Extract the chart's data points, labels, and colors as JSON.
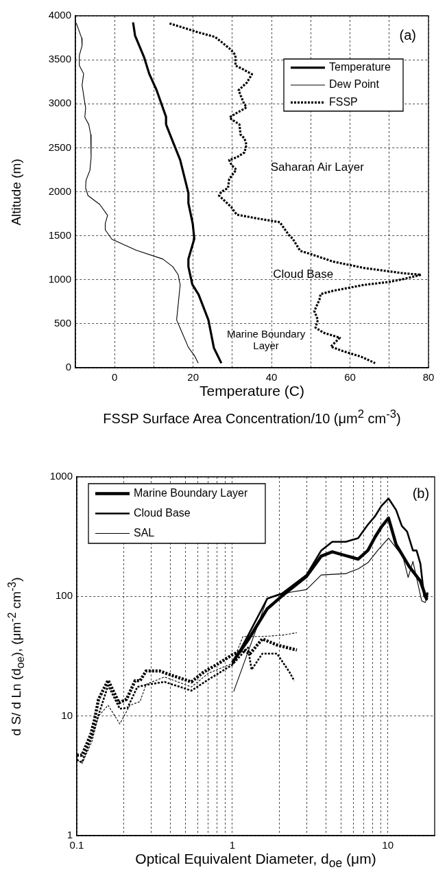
{
  "chart_data": [
    {
      "type": "line",
      "xlabel": "Temperature (C)\nFSSP Surface Area Concentration/10 (μm$^{2}$ cm$^{-3}$)",
      "ylabel": "Altitude (m)",
      "xlim": [
        -10,
        80
      ],
      "xticks": [
        {
          "value": -10,
          "label": null
        },
        0,
        {
          "value": 10,
          "label": null
        },
        20,
        {
          "value": 30,
          "label": null
        },
        40,
        {
          "value": 50,
          "label": null
        },
        60,
        {
          "value": 70,
          "label": null
        },
        80
      ],
      "ylim": [
        0,
        4000
      ],
      "yticks": [
        0,
        500,
        1000,
        1500,
        2000,
        2500,
        3000,
        3500,
        4000
      ],
      "grid": true,
      "legend": "top right",
      "series": [
        {
          "name": "Temperature",
          "color": "#000000",
          "line_style": "solid",
          "x": [
            4.7,
            5.2,
            7.5,
            8.8,
            10.7,
            13.1,
            13.1,
            14.9,
            16.7,
            18.8,
            18.8,
            19.9,
            20.3,
            18.8,
            18.8,
            19.8,
            21.4,
            23.9,
            25.3,
            27.2
          ],
          "values": [
            3925,
            3775,
            3530,
            3342,
            3154,
            2851,
            2765,
            2563,
            2361,
            1986,
            1870,
            1639,
            1466,
            1235,
            1149,
            946,
            831,
            543,
            225,
            52
          ]
        },
        {
          "name": "Dew Point",
          "color": "#000000",
          "line_style": "solid",
          "x": [
            -9.8,
            -8.4,
            -8.3,
            -9.0,
            -9.0,
            -7.9,
            -8.3,
            -7.4,
            -7.6,
            -6.6,
            -6.1,
            -6.0,
            -6.3,
            -7.3,
            -7.4,
            -6.8,
            -3.8,
            -1.8,
            -2.4,
            -2.4,
            -0.7,
            5.5,
            12.3,
            14.8,
            16.2,
            16.7,
            15.8,
            17.2,
            18.8,
            20.4,
            21.3
          ],
          "values": [
            3919,
            3746,
            3660,
            3550,
            3434,
            3342,
            3212,
            2952,
            2846,
            2765,
            2649,
            2390,
            2245,
            2130,
            2043,
            1957,
            1856,
            1732,
            1639,
            1567,
            1460,
            1336,
            1235,
            1149,
            1056,
            941,
            543,
            398,
            231,
            133,
            52
          ]
        },
        {
          "name": "FSSP",
          "color": "#000000",
          "line_style": "dotted",
          "x": [
            14.0,
            18.8,
            21.4,
            25.6,
            27.2,
            29.2,
            30.2,
            30.8,
            30.8,
            32.4,
            35.0,
            33.7,
            31.6,
            32.1,
            32.9,
            33.6,
            31.1,
            29.3,
            29.8,
            31.8,
            32.1,
            33.1,
            33.6,
            33.1,
            31.1,
            29.2,
            29.8,
            31.0,
            29.2,
            28.9,
            27.2,
            26.6,
            29.7,
            31.1,
            36.3,
            42.1,
            42.8,
            44.4,
            45.4,
            47.3,
            49.9,
            55.7,
            63.5,
            73.2,
            78.1,
            73.2,
            70.0,
            63.5,
            55.7,
            52.5,
            52.2,
            50.9,
            51.8,
            51.2,
            53.2,
            57.4,
            55.1,
            57.7,
            62.9,
            66.4
          ],
          "values": [
            3913,
            3847,
            3810,
            3760,
            3703,
            3631,
            3587,
            3550,
            3434,
            3400,
            3336,
            3241,
            3154,
            3097,
            3010,
            2958,
            2895,
            2846,
            2823,
            2765,
            2649,
            2606,
            2534,
            2447,
            2390,
            2361,
            2303,
            2251,
            2144,
            2043,
            2000,
            1957,
            1827,
            1740,
            1697,
            1654,
            1610,
            1509,
            1466,
            1328,
            1293,
            1206,
            1134,
            1076,
            1056,
            1004,
            975,
            941,
            874,
            837,
            773,
            644,
            543,
            456,
            398,
            341,
            240,
            196,
            124,
            52
          ]
        }
      ],
      "annotations": [
        "(a)",
        "Saharan Air Layer",
        "Cloud Base",
        "Marine Boundary\nLayer"
      ]
    },
    {
      "type": "line",
      "xlabel": "Optical Equivalent Diameter, d$_{oe}$ (μm)",
      "ylabel": "d S/ d Ln (d$_{oe}$), (μm$^{-2}$ cm$^{-3}$)",
      "log": "xy",
      "xlim": [
        0.1,
        20
      ],
      "xticks": [
        0.1,
        {
          "value": 0.2,
          "label": null
        },
        {
          "value": 0.3,
          "label": null
        },
        {
          "value": 0.4,
          "label": null
        },
        {
          "value": 0.5,
          "label": null
        },
        {
          "value": 0.6,
          "label": null
        },
        {
          "value": 0.7,
          "label": null
        },
        {
          "value": 0.8,
          "label": null
        },
        {
          "value": 0.9,
          "label": null
        },
        1,
        {
          "value": 2,
          "label": null
        },
        {
          "value": 3,
          "label": null
        },
        {
          "value": 4,
          "label": null
        },
        {
          "value": 5,
          "label": null
        },
        {
          "value": 6,
          "label": null
        },
        {
          "value": 7,
          "label": null
        },
        {
          "value": 8,
          "label": null
        },
        {
          "value": 9,
          "label": null
        },
        10
      ],
      "ylim": [
        1,
        1000
      ],
      "yticks": [
        1,
        10,
        100,
        1000
      ],
      "grid": true,
      "legend": "top left",
      "series": [
        {
          "name": "Marine Boundary Layer",
          "color": "#000000",
          "line_style": "solid",
          "x": [
            1,
            1.26,
            1.68,
            2.09,
            3.0,
            3.73,
            4.39,
            6.44,
            7.44,
            8.28,
            9.06,
            10.1,
            11.3,
            13.7,
            16.2,
            17.8
          ],
          "values": [
            28,
            43,
            79,
            101,
            147,
            217,
            236,
            205,
            242,
            314,
            379,
            452,
            272,
            178,
            134,
            94
          ]
        },
        {
          "name": "Cloud Base",
          "color": "#000000",
          "line_style": "solid",
          "x": [
            1,
            1.26,
            1.68,
            2.09,
            3.0,
            3.73,
            4.39,
            5.36,
            6.44,
            7.44,
            8.28,
            9.06,
            10.1,
            11.3,
            12.3,
            13.3,
            14.5,
            15.3,
            16.2,
            17.1,
            17.8,
            18.0
          ],
          "values": [
            27,
            47,
            96,
            106,
            151,
            242,
            286,
            286,
            307,
            398,
            469,
            567,
            659,
            528,
            388,
            348,
            242,
            242,
            187,
            101,
            94,
            108
          ]
        },
        {
          "name": "SAL",
          "color": "#000000",
          "line_style": "solid",
          "x": [
            1.02,
            1.68,
            2.33,
            3.0,
            3.73,
            5.36,
            6.44,
            7.44,
            8.6,
            10.1,
            12.5,
            13.5,
            14.5,
            16.5,
            17.4,
            18.0
          ],
          "values": [
            16,
            96,
            108,
            114,
            151,
            155,
            170,
            191,
            242,
            307,
            215,
            144,
            196,
            92,
            89,
            101
          ]
        },
        {
          "color": "#000000",
          "line_style": "dotted",
          "x": [
            0.1,
            0.108,
            0.123,
            0.13,
            0.138,
            0.159,
            0.187,
            0.209,
            0.237,
            0.255,
            0.279,
            0.341,
            0.416,
            0.546,
            0.654,
            0.813,
            1.0,
            1.17,
            1.3,
            1.56,
            1.94,
            2.6
          ],
          "values": [
            4.7,
            4.7,
            7.0,
            9.3,
            13.8,
            19.9,
            12.9,
            13.8,
            19.7,
            19.7,
            23.8,
            23.8,
            21.7,
            19.3,
            23.3,
            27.4,
            32.5,
            35.6,
            33.2,
            44.1,
            39.2,
            35.6
          ]
        },
        {
          "color": "#000000",
          "line_style": "dotted",
          "x": [
            0.1,
            0.108,
            0.125,
            0.138,
            0.159,
            0.189,
            0.212,
            0.245,
            0.274,
            0.366,
            0.546,
            0.703,
            1.0,
            1.26,
            1.33,
            1.56,
            1.94,
            2.33,
            2.5
          ],
          "values": [
            4.3,
            4.1,
            6.7,
            10.2,
            18,
            11.5,
            11.7,
            17.5,
            18.1,
            19.3,
            16.3,
            20.2,
            26.8,
            37.4,
            24.4,
            33.2,
            33.2,
            23.3,
            19.7
          ]
        },
        {
          "color": "#000000",
          "line_style": "dotted",
          "x": [
            0.1,
            0.108,
            0.125,
            0.138,
            0.159,
            0.189,
            0.22,
            0.255,
            0.279,
            0.366,
            0.546,
            0.703,
            1.0,
            1.17,
            1.56,
            2.09,
            2.6
          ],
          "values": [
            4.4,
            4.0,
            6.1,
            10,
            12.3,
            8.6,
            12.3,
            13.2,
            18.4,
            21.2,
            17.5,
            22.8,
            27.5,
            46.2,
            46.2,
            47.4,
            49.7
          ]
        }
      ],
      "annotations": [
        "(b)"
      ]
    }
  ]
}
